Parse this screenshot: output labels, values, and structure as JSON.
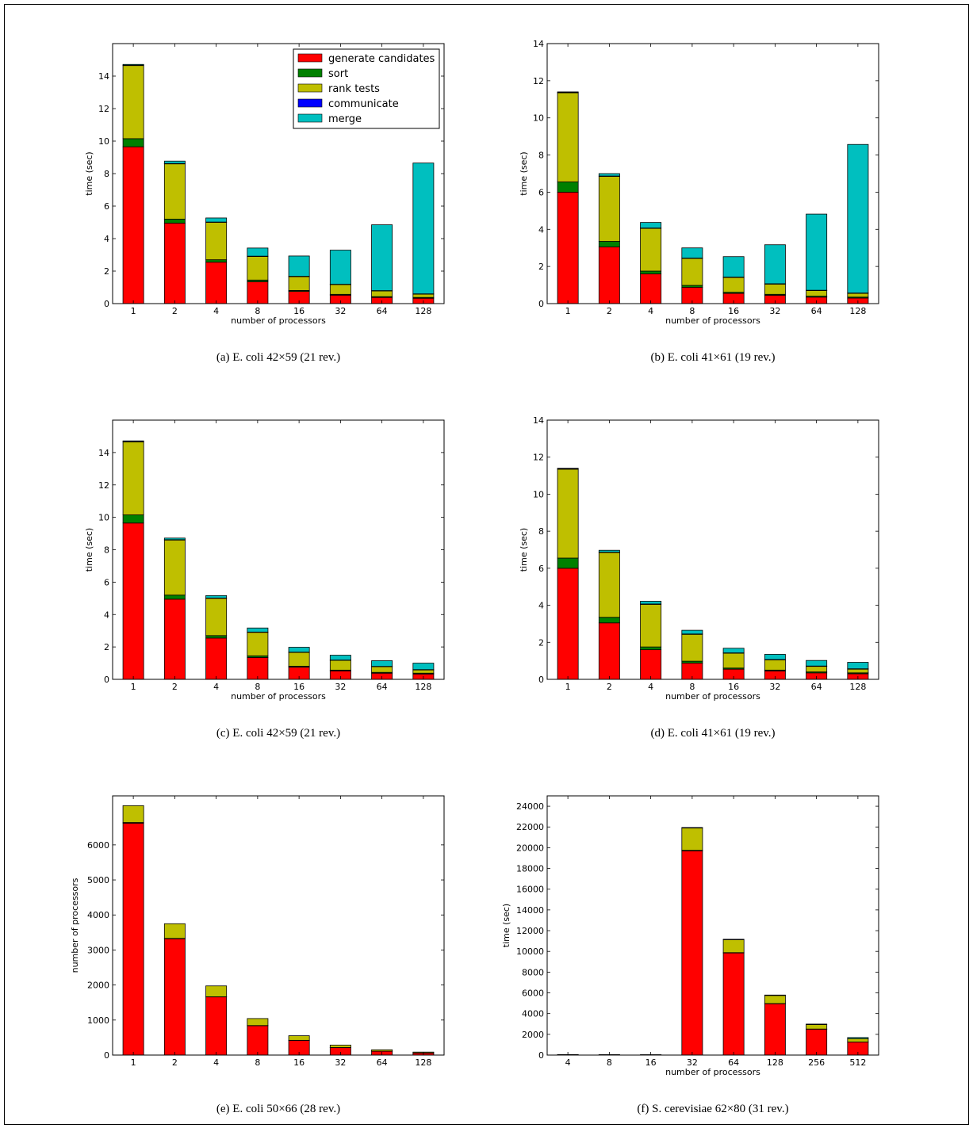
{
  "colors": {
    "generate_candidates": "#ff0000",
    "sort": "#008000",
    "rank_tests": "#bfbf00",
    "communicate": "#0000ff",
    "merge": "#00bfbf"
  },
  "legend": [
    "generate candidates",
    "sort",
    "rank tests",
    "communicate",
    "merge"
  ],
  "chart_data": [
    {
      "type": "bar",
      "stacked": true,
      "caption": "(a)  E. coli 42×59 (21 rev.)",
      "xlabel": "number of processors",
      "ylabel": "time (sec)",
      "categories": [
        "1",
        "2",
        "4",
        "8",
        "16",
        "32",
        "64",
        "128"
      ],
      "ylim": [
        0,
        16
      ],
      "yticks": [
        0,
        2,
        4,
        6,
        8,
        10,
        12,
        14
      ],
      "legend": "top-right",
      "series": [
        {
          "name": "generate candidates",
          "values": [
            9.65,
            4.95,
            2.55,
            1.35,
            0.75,
            0.52,
            0.38,
            0.33
          ]
        },
        {
          "name": "sort",
          "values": [
            0.5,
            0.25,
            0.15,
            0.1,
            0.06,
            0.05,
            0.05,
            0.05
          ]
        },
        {
          "name": "rank tests",
          "values": [
            4.5,
            3.4,
            2.3,
            1.45,
            0.85,
            0.6,
            0.35,
            0.2
          ]
        },
        {
          "name": "communicate",
          "values": [
            0.02,
            0.02,
            0.02,
            0.02,
            0.02,
            0.02,
            0.02,
            0.02
          ]
        },
        {
          "name": "merge",
          "values": [
            0.05,
            0.15,
            0.25,
            0.5,
            1.25,
            2.1,
            4.05,
            8.05
          ]
        }
      ]
    },
    {
      "type": "bar",
      "stacked": true,
      "caption": "(b)  E. coli 41×61 (19 rev.)",
      "xlabel": "number of processors",
      "ylabel": "time (sec)",
      "categories": [
        "1",
        "2",
        "4",
        "8",
        "16",
        "32",
        "64",
        "128"
      ],
      "ylim": [
        0,
        14
      ],
      "yticks": [
        0,
        2,
        4,
        6,
        8,
        10,
        12,
        14
      ],
      "series": [
        {
          "name": "generate candidates",
          "values": [
            6.0,
            3.05,
            1.6,
            0.88,
            0.55,
            0.45,
            0.35,
            0.3
          ]
        },
        {
          "name": "sort",
          "values": [
            0.55,
            0.3,
            0.15,
            0.1,
            0.06,
            0.05,
            0.05,
            0.05
          ]
        },
        {
          "name": "rank tests",
          "values": [
            4.8,
            3.5,
            2.3,
            1.45,
            0.8,
            0.55,
            0.3,
            0.2
          ]
        },
        {
          "name": "communicate",
          "values": [
            0.02,
            0.02,
            0.02,
            0.02,
            0.02,
            0.02,
            0.02,
            0.02
          ]
        },
        {
          "name": "merge",
          "values": [
            0.03,
            0.13,
            0.3,
            0.55,
            1.1,
            2.1,
            4.1,
            8.0
          ]
        }
      ]
    },
    {
      "type": "bar",
      "stacked": true,
      "caption": "(c)  E. coli 42×59 (21 rev.)",
      "xlabel": "number of processors",
      "ylabel": "time (sec)",
      "categories": [
        "1",
        "2",
        "4",
        "8",
        "16",
        "32",
        "64",
        "128"
      ],
      "ylim": [
        0,
        16
      ],
      "yticks": [
        0,
        2,
        4,
        6,
        8,
        10,
        12,
        14
      ],
      "series": [
        {
          "name": "generate candidates",
          "values": [
            9.65,
            4.95,
            2.55,
            1.35,
            0.75,
            0.52,
            0.38,
            0.33
          ]
        },
        {
          "name": "sort",
          "values": [
            0.5,
            0.25,
            0.15,
            0.1,
            0.06,
            0.05,
            0.05,
            0.05
          ]
        },
        {
          "name": "rank tests",
          "values": [
            4.5,
            3.4,
            2.3,
            1.45,
            0.85,
            0.6,
            0.35,
            0.2
          ]
        },
        {
          "name": "communicate",
          "values": [
            0.02,
            0.02,
            0.02,
            0.02,
            0.02,
            0.02,
            0.02,
            0.02
          ]
        },
        {
          "name": "merge",
          "values": [
            0.05,
            0.1,
            0.15,
            0.25,
            0.3,
            0.3,
            0.35,
            0.4
          ]
        }
      ]
    },
    {
      "type": "bar",
      "stacked": true,
      "caption": "(d)  E. coli 41×61 (19 rev.)",
      "xlabel": "number of processors",
      "ylabel": "time (sec)",
      "categories": [
        "1",
        "2",
        "4",
        "8",
        "16",
        "32",
        "64",
        "128"
      ],
      "ylim": [
        0,
        14
      ],
      "yticks": [
        0,
        2,
        4,
        6,
        8,
        10,
        12,
        14
      ],
      "series": [
        {
          "name": "generate candidates",
          "values": [
            6.0,
            3.05,
            1.6,
            0.88,
            0.55,
            0.45,
            0.35,
            0.3
          ]
        },
        {
          "name": "sort",
          "values": [
            0.55,
            0.3,
            0.15,
            0.1,
            0.06,
            0.05,
            0.05,
            0.05
          ]
        },
        {
          "name": "rank tests",
          "values": [
            4.8,
            3.5,
            2.3,
            1.45,
            0.8,
            0.55,
            0.3,
            0.2
          ]
        },
        {
          "name": "communicate",
          "values": [
            0.02,
            0.02,
            0.02,
            0.02,
            0.02,
            0.02,
            0.02,
            0.02
          ]
        },
        {
          "name": "merge",
          "values": [
            0.03,
            0.1,
            0.15,
            0.2,
            0.25,
            0.28,
            0.3,
            0.35
          ]
        }
      ]
    },
    {
      "type": "bar",
      "stacked": true,
      "caption": "(e)  E. coli 50×66 (28 rev.)",
      "xlabel": "",
      "ylabel": "number of processors",
      "categories": [
        "1",
        "2",
        "4",
        "8",
        "16",
        "32",
        "64",
        "128"
      ],
      "ylim": [
        0,
        7400
      ],
      "yticks": [
        0,
        1000,
        2000,
        3000,
        4000,
        5000,
        6000
      ],
      "series": [
        {
          "name": "generate candidates",
          "values": [
            6620,
            3320,
            1660,
            840,
            420,
            215,
            110,
            60
          ]
        },
        {
          "name": "sort",
          "values": [
            20,
            10,
            5,
            3,
            2,
            1,
            1,
            1
          ]
        },
        {
          "name": "rank tests",
          "values": [
            480,
            420,
            310,
            200,
            130,
            70,
            40,
            25
          ]
        },
        {
          "name": "communicate",
          "values": [
            0,
            0,
            0,
            0,
            0,
            0,
            0,
            0
          ]
        },
        {
          "name": "merge",
          "values": [
            0,
            0,
            0,
            0,
            0,
            0,
            0,
            0
          ]
        }
      ]
    },
    {
      "type": "bar",
      "stacked": true,
      "caption": "(f)  S. cerevisiae 62×80 (31 rev.)",
      "xlabel": "number of processors",
      "ylabel": "time (sec)",
      "categories": [
        "4",
        "8",
        "16",
        "32",
        "64",
        "128",
        "256",
        "512"
      ],
      "ylim": [
        0,
        25000
      ],
      "yticks": [
        0,
        2000,
        4000,
        6000,
        8000,
        10000,
        12000,
        14000,
        16000,
        18000,
        20000,
        22000,
        24000
      ],
      "series": [
        {
          "name": "generate candidates",
          "values": [
            40,
            30,
            25,
            19700,
            9850,
            4950,
            2500,
            1250
          ]
        },
        {
          "name": "sort",
          "values": [
            0,
            0,
            0,
            50,
            30,
            20,
            10,
            10
          ]
        },
        {
          "name": "rank tests",
          "values": [
            10,
            10,
            10,
            2150,
            1250,
            780,
            430,
            330
          ]
        },
        {
          "name": "communicate",
          "values": [
            0,
            0,
            0,
            0,
            0,
            0,
            0,
            0
          ]
        },
        {
          "name": "merge",
          "values": [
            0,
            0,
            0,
            50,
            40,
            40,
            50,
            100
          ]
        }
      ]
    }
  ]
}
